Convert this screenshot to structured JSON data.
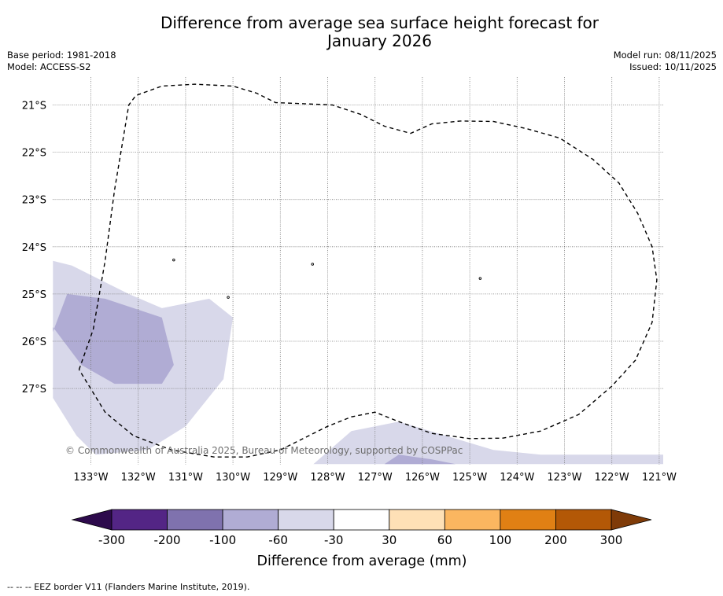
{
  "title_line1": "Difference from average sea surface height forecast for",
  "title_line2": "January 2026",
  "base_period": "Base period: 1981-2018",
  "model": "Model: ACCESS-S2",
  "model_run": "Model run: 08/11/2025",
  "issued": "Issued: 10/11/2025",
  "copyright": "© Commonwealth of Australia 2025, Bureau of Meteorology, supported by COSPPac",
  "footer_note": "--  --  -- EEZ border V11 (Flanders Marine Institute, 2019).",
  "map": {
    "lon_range": [
      -133.8,
      -120.9
    ],
    "lat_range": [
      -28.6,
      -20.4
    ],
    "lon_labels": [
      {
        "lon": -133,
        "label": "133°W"
      },
      {
        "lon": -132,
        "label": "132°W"
      },
      {
        "lon": -131,
        "label": "131°W"
      },
      {
        "lon": -130,
        "label": "130°W"
      },
      {
        "lon": -129,
        "label": "129°W"
      },
      {
        "lon": -128,
        "label": "128°W"
      },
      {
        "lon": -127,
        "label": "127°W"
      },
      {
        "lon": -126,
        "label": "126°W"
      },
      {
        "lon": -125,
        "label": "125°W"
      },
      {
        "lon": -124,
        "label": "124°W"
      },
      {
        "lon": -123,
        "label": "123°W"
      },
      {
        "lon": -122,
        "label": "122°W"
      },
      {
        "lon": -121,
        "label": "121°W"
      }
    ],
    "lat_labels": [
      {
        "lat": -21,
        "label": "21°S"
      },
      {
        "lat": -22,
        "label": "22°S"
      },
      {
        "lat": -23,
        "label": "23°S"
      },
      {
        "lat": -24,
        "label": "24°S"
      },
      {
        "lat": -25,
        "label": "25°S"
      },
      {
        "lat": -26,
        "label": "26°S"
      },
      {
        "lat": -27,
        "label": "27°S"
      }
    ],
    "fields": [
      {
        "bin": "-60 to -30",
        "color": "#d8d8ea",
        "coords": [
          [
            -133.8,
            -24.3
          ],
          [
            -133.4,
            -24.4
          ],
          [
            -132.8,
            -24.7
          ],
          [
            -132.2,
            -25.0
          ],
          [
            -131.5,
            -25.3
          ],
          [
            -130.5,
            -25.1
          ],
          [
            -130.0,
            -25.5
          ],
          [
            -130.2,
            -26.8
          ],
          [
            -131.0,
            -27.8
          ],
          [
            -131.8,
            -28.3
          ],
          [
            -132.9,
            -28.4
          ],
          [
            -133.3,
            -28.0
          ],
          [
            -133.8,
            -27.2
          ]
        ]
      },
      {
        "bin": "-60 to -30",
        "color": "#d8d8ea",
        "coords": [
          [
            -128.3,
            -28.6
          ],
          [
            -127.5,
            -27.9
          ],
          [
            -126.5,
            -27.7
          ],
          [
            -125.5,
            -28.0
          ],
          [
            -124.5,
            -28.3
          ],
          [
            -123.5,
            -28.4
          ],
          [
            -122.0,
            -28.4
          ],
          [
            -120.9,
            -28.4
          ],
          [
            -120.9,
            -28.6
          ]
        ]
      },
      {
        "bin": "-100 to -60",
        "color": "#b0acd4",
        "coords": [
          [
            -133.8,
            -25.8
          ],
          [
            -133.5,
            -25.0
          ],
          [
            -132.7,
            -25.1
          ],
          [
            -131.5,
            -25.5
          ],
          [
            -131.25,
            -26.5
          ],
          [
            -131.5,
            -26.9
          ],
          [
            -132.5,
            -26.9
          ],
          [
            -133.2,
            -26.5
          ],
          [
            -133.8,
            -25.7
          ]
        ]
      },
      {
        "bin": "-100 to -60",
        "color": "#b0acd4",
        "coords": [
          [
            -126.8,
            -28.6
          ],
          [
            -126.5,
            -28.4
          ],
          [
            -125.8,
            -28.5
          ],
          [
            -125.3,
            -28.6
          ]
        ]
      }
    ],
    "eez_border": [
      [
        -133.25,
        -26.6
      ],
      [
        -132.95,
        -25.75
      ],
      [
        -132.7,
        -24.3
      ],
      [
        -132.5,
        -22.8
      ],
      [
        -132.2,
        -21.0
      ],
      [
        -132.05,
        -20.8
      ],
      [
        -131.5,
        -20.6
      ],
      [
        -130.8,
        -20.56
      ],
      [
        -130.0,
        -20.6
      ],
      [
        -129.5,
        -20.75
      ],
      [
        -129.1,
        -20.95
      ],
      [
        -128.6,
        -20.97
      ],
      [
        -127.9,
        -21.0
      ],
      [
        -127.3,
        -21.2
      ],
      [
        -126.8,
        -21.45
      ],
      [
        -126.25,
        -21.6
      ],
      [
        -125.8,
        -21.4
      ],
      [
        -125.2,
        -21.34
      ],
      [
        -124.5,
        -21.35
      ],
      [
        -123.8,
        -21.5
      ],
      [
        -123.1,
        -21.7
      ],
      [
        -122.4,
        -22.15
      ],
      [
        -121.85,
        -22.65
      ],
      [
        -121.45,
        -23.3
      ],
      [
        -121.15,
        -24.0
      ],
      [
        -121.05,
        -24.7
      ],
      [
        -121.15,
        -25.6
      ],
      [
        -121.5,
        -26.4
      ],
      [
        -122.0,
        -26.95
      ],
      [
        -122.7,
        -27.55
      ],
      [
        -123.5,
        -27.9
      ],
      [
        -124.3,
        -28.05
      ],
      [
        -125.0,
        -28.06
      ],
      [
        -125.8,
        -27.95
      ],
      [
        -126.5,
        -27.7
      ],
      [
        -127.0,
        -27.5
      ],
      [
        -127.5,
        -27.6
      ],
      [
        -128.0,
        -27.8
      ],
      [
        -128.5,
        -28.05
      ],
      [
        -129.0,
        -28.3
      ],
      [
        -129.7,
        -28.45
      ],
      [
        -130.4,
        -28.45
      ],
      [
        -131.3,
        -28.3
      ],
      [
        -132.1,
        -28.0
      ],
      [
        -132.7,
        -27.5
      ],
      [
        -133.25,
        -26.6
      ]
    ],
    "islands": [
      {
        "lon": -131.25,
        "lat": -24.28
      },
      {
        "lon": -128.32,
        "lat": -24.37
      },
      {
        "lon": -130.1,
        "lat": -25.07
      },
      {
        "lon": -124.78,
        "lat": -24.67
      }
    ]
  },
  "colorbar": {
    "title": "Difference from average (mm)",
    "ticks": [
      "-300",
      "-200",
      "-100",
      "-60",
      "-30",
      "30",
      "60",
      "100",
      "200",
      "300"
    ],
    "colors": [
      "#532585",
      "#7f72ae",
      "#b0acd4",
      "#d8d8ea",
      "#ffffff",
      "#fee0b6",
      "#fbb660",
      "#e08014",
      "#b35806"
    ],
    "extend_min_color": "#2d0a4c",
    "extend_max_color": "#7f3b08"
  }
}
